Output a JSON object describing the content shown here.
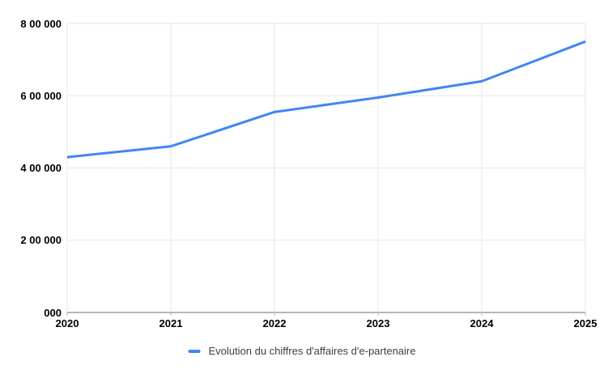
{
  "chart_data": {
    "type": "line",
    "title": "",
    "x": [
      2020,
      2021,
      2022,
      2023,
      2024,
      2025
    ],
    "x_labels": [
      "2020",
      "2021",
      "2022",
      "2023",
      "2024",
      "2025"
    ],
    "series": [
      {
        "name": "Evolution du chiffres d'affaires d'e-partenaire",
        "values": [
          430000,
          460000,
          555000,
          595000,
          640000,
          750000
        ],
        "color": "#4285f4"
      }
    ],
    "ylim": [
      0,
      800000
    ],
    "ytick_values": [
      0,
      200000,
      400000,
      600000,
      800000
    ],
    "ytick_labels": [
      "000",
      "2 00 000",
      "4 00 000",
      "6 00 000",
      "8 00 000"
    ],
    "grid": true,
    "legend_position": "bottom"
  },
  "colors": {
    "line": "#4285f4",
    "gridline": "#e6e6e6",
    "axis": "#b7b7b7",
    "axis_label": "#000000",
    "legend_text": "#3c4043",
    "background": "#ffffff"
  }
}
